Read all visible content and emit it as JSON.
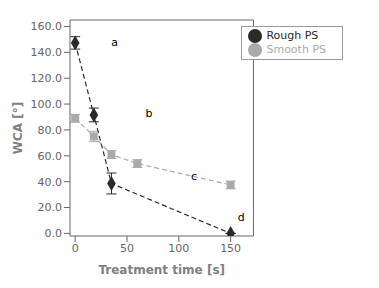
{
  "chart_data": {
    "type": "line",
    "xlabel": "Treatment time [s]",
    "ylabel": "WCA [°]",
    "xlim": [
      -5,
      172
    ],
    "ylim": [
      -2,
      165
    ],
    "xticks": [
      0,
      50,
      100,
      150
    ],
    "yticks": [
      {
        "value": 0.0,
        "label": "0.0"
      },
      {
        "value": 20.0,
        "label": "20.0"
      },
      {
        "value": 40.0,
        "label": "40.0"
      },
      {
        "value": 60.0,
        "label": "60.0"
      },
      {
        "value": 80.0,
        "label": "80.0"
      },
      {
        "value": 100.0,
        "label": "100.0"
      },
      {
        "value": 120.0,
        "label": "120.0"
      },
      {
        "value": 140.0,
        "label": "140.0"
      },
      {
        "value": 160.0,
        "label": "160.0"
      }
    ],
    "grid": false,
    "legend": "upper right",
    "series": [
      {
        "name": "Rough PS",
        "color": "#2a2a2a",
        "marker": "diamond",
        "line_style": "dashed",
        "x": [
          0,
          18,
          35,
          150
        ],
        "values": [
          147.3,
          91.6,
          38.6,
          0.0
        ],
        "yerr_lo": [
          4.8,
          5.3,
          8.1,
          0.0
        ],
        "yerr_hi": [
          4.8,
          5.3,
          8.1,
          0.0
        ]
      },
      {
        "name": "Smooth PS",
        "color": "#aaaaaa",
        "marker": "square",
        "line_style": "dashed",
        "x": [
          0,
          18,
          35,
          60,
          150
        ],
        "values": [
          89.0,
          75.0,
          61.0,
          54.0,
          37.5
        ],
        "yerr": [
          3.0,
          4.0,
          3.0,
          3.0,
          3.0
        ]
      }
    ],
    "annotations": [
      {
        "text": "a",
        "x": 30,
        "y": 148
      },
      {
        "text": "b",
        "x": 63,
        "y": 93
      },
      {
        "text": "c",
        "x": 107,
        "y": 44
      },
      {
        "text": "d",
        "x": 152,
        "y": 13
      }
    ]
  }
}
